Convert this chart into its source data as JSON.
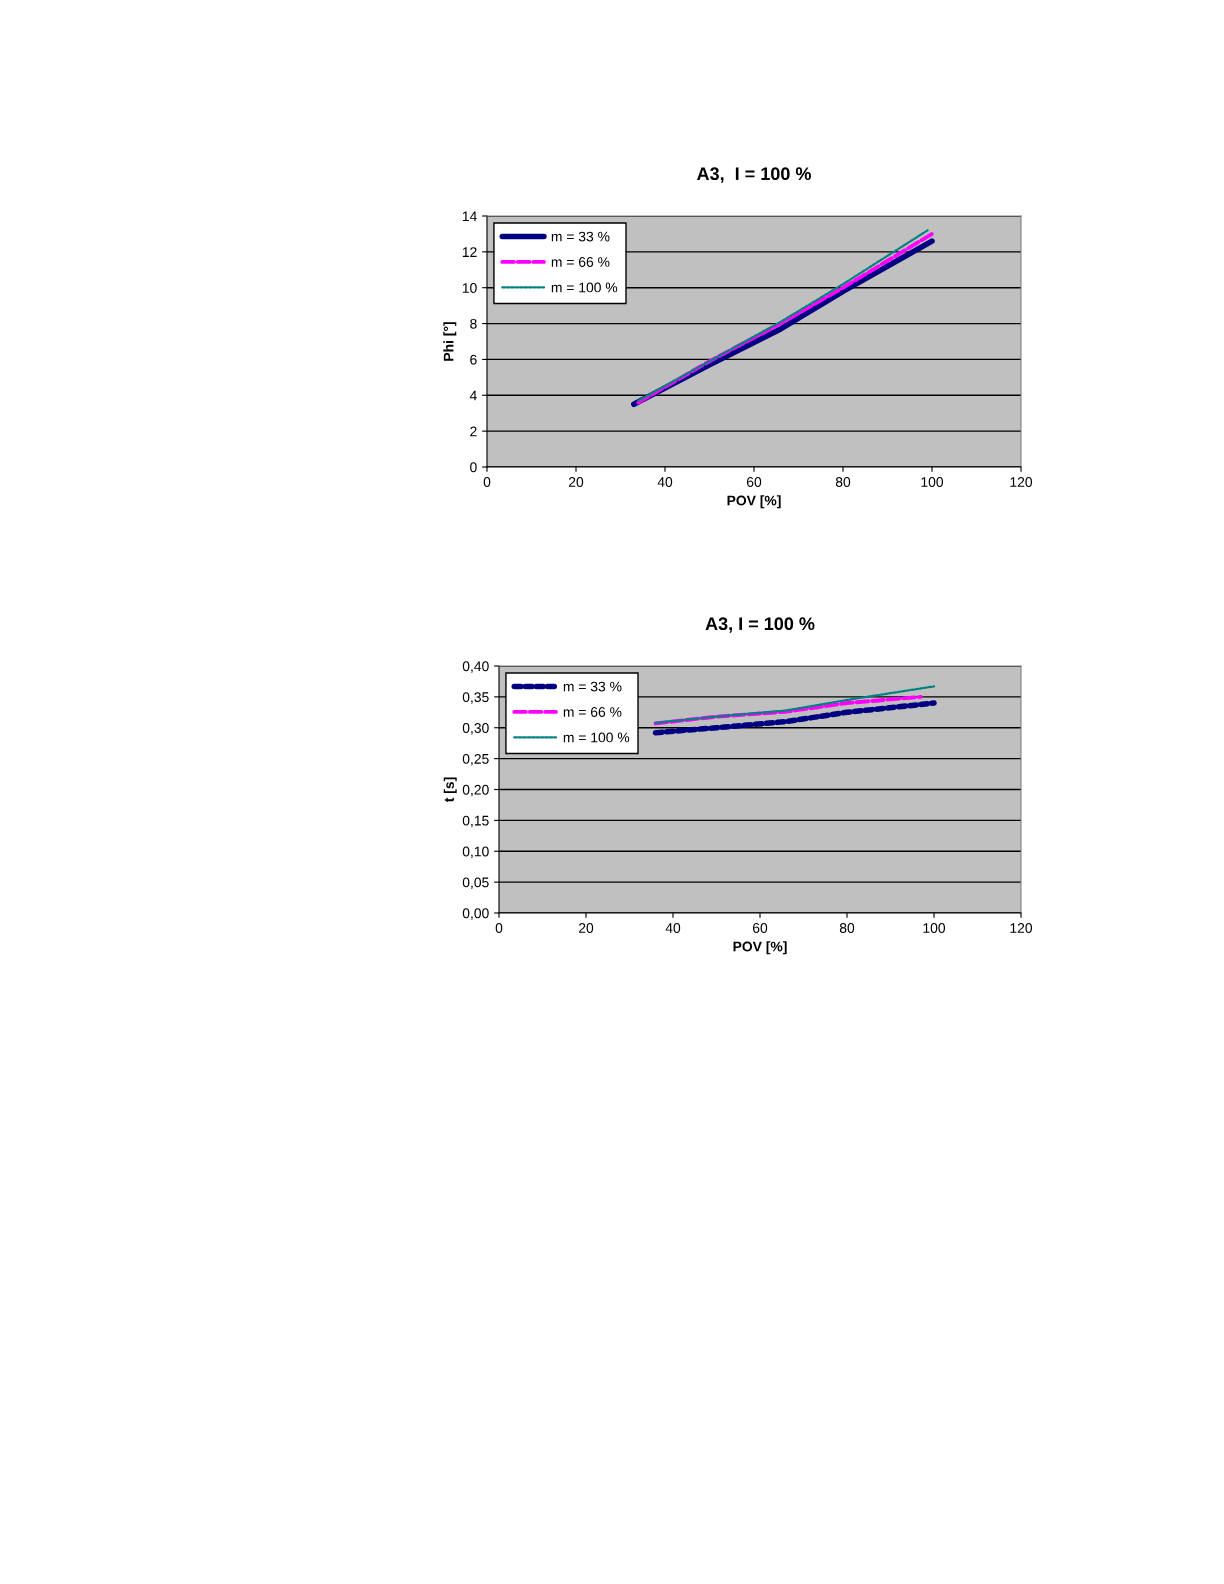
{
  "chart_data": [
    {
      "type": "line",
      "title": "A3,  I = 100 %",
      "xlabel": "POV [%]",
      "ylabel": "Phi [°]",
      "xlim": [
        0,
        120
      ],
      "xticks": [
        0,
        20,
        40,
        60,
        80,
        100,
        120
      ],
      "ylim": [
        0,
        14
      ],
      "yticks": [
        0,
        2,
        4,
        6,
        8,
        10,
        12,
        14
      ],
      "grid": "y",
      "legend": "top left",
      "marker": "none",
      "series": [
        {
          "name": "m = 33 %",
          "color": "#000080",
          "line_style": "solid",
          "x": [
            33,
            50,
            66,
            80,
            100
          ],
          "values": [
            3.5,
            5.7,
            7.7,
            9.8,
            12.6
          ]
        },
        {
          "name": "m = 66 %",
          "color": "#ff00ff",
          "line_style": "dashed",
          "x": [
            34,
            50,
            66,
            80,
            100
          ],
          "values": [
            3.6,
            5.9,
            8.0,
            10.0,
            13.0
          ]
        },
        {
          "name": "m = 100 %",
          "color": "#008080",
          "line_style": "dotted",
          "x": [
            34,
            50,
            66,
            80,
            99
          ],
          "values": [
            3.7,
            5.9,
            8.1,
            10.2,
            13.2
          ]
        }
      ]
    },
    {
      "type": "line",
      "title": "A3, I = 100 %",
      "xlabel": "POV [%]",
      "ylabel": "t [s]",
      "xlim": [
        0,
        120
      ],
      "xticks": [
        0,
        20,
        40,
        60,
        80,
        100,
        120
      ],
      "ylim": [
        0,
        0.4
      ],
      "yticks": [
        {
          "value": 0,
          "label": "0,00"
        },
        {
          "value": 0.05,
          "label": "0,05"
        },
        {
          "value": 0.1,
          "label": "0,10"
        },
        {
          "value": 0.15,
          "label": "0,15"
        },
        {
          "value": 0.2,
          "label": "0,20"
        },
        {
          "value": 0.25,
          "label": "0,25"
        },
        {
          "value": 0.3,
          "label": "0,30"
        },
        {
          "value": 0.35,
          "label": "0,35"
        },
        {
          "value": 0.4,
          "label": "0,40"
        }
      ],
      "grid": "y",
      "legend": "top left",
      "marker": "none",
      "series": [
        {
          "name": "m = 33 %",
          "color": "#000080",
          "line_style": "dotted",
          "x": [
            36,
            50,
            66,
            80,
            100
          ],
          "values": [
            0.292,
            0.3,
            0.31,
            0.325,
            0.34
          ]
        },
        {
          "name": "m = 66 %",
          "color": "#ff00ff",
          "line_style": "dashed",
          "x": [
            36,
            50,
            66,
            80,
            97
          ],
          "values": [
            0.307,
            0.318,
            0.326,
            0.34,
            0.35
          ]
        },
        {
          "name": "m = 100 %",
          "color": "#008080",
          "line_style": "dotted",
          "x": [
            36,
            50,
            66,
            80,
            100
          ],
          "values": [
            0.308,
            0.318,
            0.328,
            0.345,
            0.367
          ]
        }
      ]
    }
  ]
}
